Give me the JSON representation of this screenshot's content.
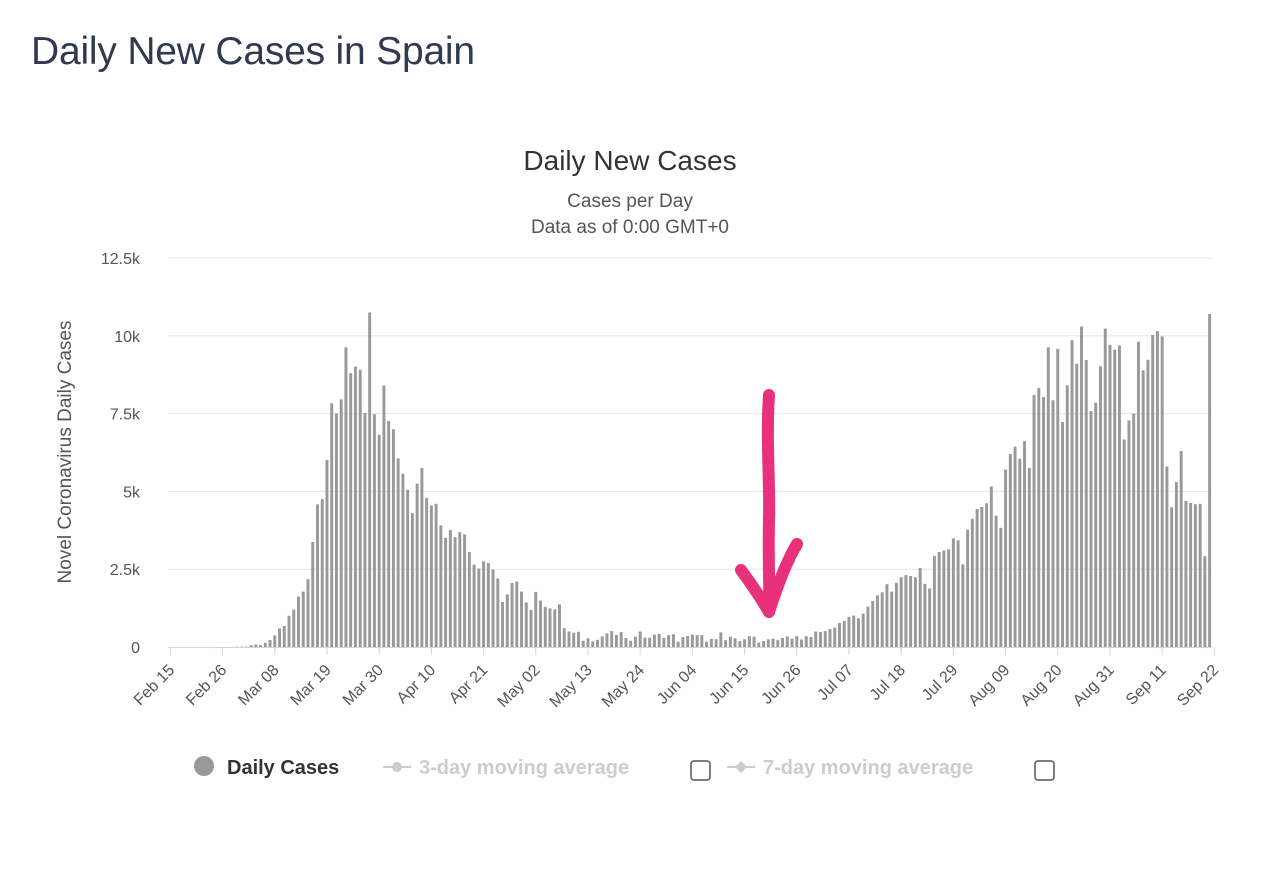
{
  "page": {
    "title": "Daily New Cases in Spain"
  },
  "chart_data": {
    "type": "bar",
    "title": "Daily New Cases",
    "subtitle_lines": [
      "Cases per Day",
      "Data as of 0:00 GMT+0"
    ],
    "xlabel": "",
    "ylabel": "Novel Coronavirus Daily Cases",
    "ylim": [
      0,
      12500
    ],
    "yticks": [
      0,
      2500,
      5000,
      7500,
      10000,
      12500
    ],
    "ytick_labels": [
      "0",
      "2.5k",
      "5k",
      "7.5k",
      "10k",
      "12.5k"
    ],
    "xtick_labels": [
      "Feb 15",
      "Feb 26",
      "Mar 08",
      "Mar 19",
      "Mar 30",
      "Apr 10",
      "Apr 21",
      "May 02",
      "May 13",
      "May 24",
      "Jun 04",
      "Jun 15",
      "Jun 26",
      "Jul 07",
      "Jul 18",
      "Jul 29",
      "Aug 09",
      "Aug 20",
      "Aug 31",
      "Sep 11",
      "Sep 22"
    ],
    "grid": true,
    "series": [
      {
        "name": "Daily Cases",
        "color": "#999999",
        "values": [
          0,
          0,
          0,
          0,
          0,
          0,
          0,
          0,
          0,
          0,
          0,
          1,
          2,
          3,
          8,
          10,
          13,
          59,
          82,
          62,
          131,
          225,
          372,
          598,
          679,
          1003,
          1203,
          1620,
          1780,
          2178,
          3372,
          4583,
          4750,
          6010,
          7830,
          7503,
          7957,
          9630,
          8800,
          9010,
          8910,
          7520,
          10750,
          7480,
          6820,
          8400,
          7260,
          6998,
          6060,
          5570,
          5050,
          4300,
          5250,
          5750,
          4790,
          4550,
          4600,
          3910,
          3510,
          3760,
          3530,
          3690,
          3620,
          3050,
          2650,
          2520,
          2750,
          2700,
          2490,
          2200,
          1450,
          1690,
          2060,
          2100,
          1780,
          1430,
          1190,
          1770,
          1490,
          1290,
          1240,
          1210,
          1370,
          606,
          500,
          460,
          490,
          200,
          280,
          180,
          230,
          340,
          440,
          510,
          390,
          480,
          290,
          200,
          330,
          500,
          300,
          300,
          400,
          420,
          290,
          380,
          410,
          170,
          320,
          350,
          400,
          380,
          380,
          170,
          260,
          250,
          470,
          220,
          330,
          280,
          190,
          250,
          350,
          330,
          140,
          190,
          250,
          270,
          220,
          290,
          340,
          270,
          350,
          240,
          350,
          320,
          500,
          480,
          510,
          580,
          620,
          770,
          840,
          970,
          1010,
          920,
          1070,
          1300,
          1480,
          1660,
          1760,
          2020,
          1780,
          2060,
          2240,
          2310,
          2280,
          2240,
          2540,
          2030,
          1880,
          2930,
          3050,
          3100,
          3140,
          3490,
          3430,
          2660,
          3770,
          4120,
          4430,
          4500,
          4620,
          5160,
          4220,
          3830,
          5700,
          6200,
          6440,
          6050,
          6620,
          5750,
          8100,
          8320,
          8030,
          9630,
          7930,
          9580,
          7230,
          8410,
          9860,
          9100,
          10300,
          9220,
          7580,
          7850,
          9020,
          10230,
          9710,
          9550,
          9690,
          6670,
          7280,
          7500,
          9810,
          8890,
          9230,
          10030,
          10150,
          9980,
          5800,
          4490,
          5300,
          6300,
          4690,
          4630,
          4590,
          4600,
          2920,
          10700
        ]
      },
      {
        "name": "3-day moving average",
        "visible": false
      },
      {
        "name": "7-day moving average",
        "visible": false
      }
    ],
    "legend": {
      "placement": "bottom",
      "items": [
        {
          "label": "Daily Cases",
          "active": true
        },
        {
          "label": "3-day moving average",
          "active": false
        },
        {
          "label": "7-day moving average",
          "active": false
        }
      ]
    },
    "annotation": {
      "type": "arrow",
      "color": "#e8317a",
      "points_to": "Jun 20"
    }
  }
}
